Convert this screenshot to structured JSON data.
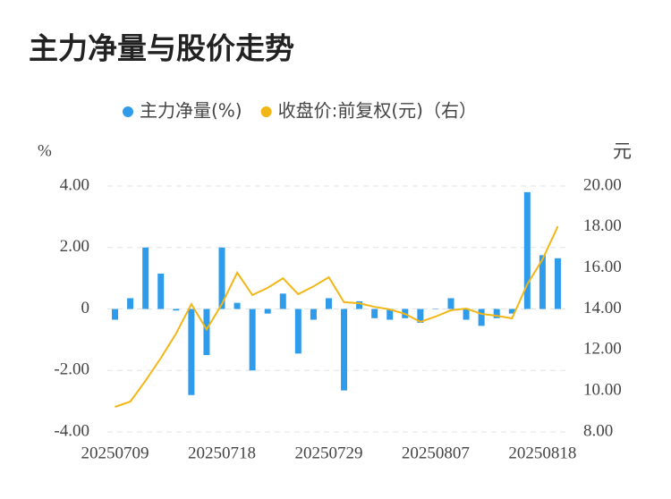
{
  "chart_data": {
    "type": "bar-line",
    "title": "主力净量与股价走势",
    "y_unit": "%",
    "y2_unit": "元",
    "categories": [
      "20250709",
      null,
      null,
      null,
      null,
      null,
      null,
      "20250718",
      null,
      null,
      null,
      null,
      null,
      null,
      "20250729",
      null,
      null,
      null,
      null,
      null,
      null,
      "20250807",
      null,
      null,
      null,
      null,
      null,
      null,
      "20250818",
      null
    ],
    "series": [
      {
        "name": "主力净量(%)",
        "type": "bar",
        "color": "#2f9ceb",
        "values": [
          -0.35,
          0.35,
          2.0,
          1.15,
          -0.05,
          -2.8,
          -1.5,
          2.0,
          0.2,
          -2.0,
          -0.15,
          0.5,
          -1.45,
          -0.35,
          0.35,
          -2.65,
          0.25,
          -0.3,
          -0.35,
          -0.3,
          -0.45,
          0.0,
          0.35,
          -0.35,
          -0.55,
          -0.3,
          -0.15,
          3.8,
          1.75,
          1.65
        ]
      },
      {
        "name": "收盘价:前复权(元)（右）",
        "type": "line",
        "axis": "y2",
        "color": "#f2b616",
        "values": [
          9.22,
          9.48,
          10.5,
          11.6,
          12.8,
          14.24,
          13.0,
          14.24,
          15.77,
          14.68,
          15.03,
          15.5,
          14.72,
          15.1,
          15.55,
          14.33,
          14.28,
          14.1,
          13.98,
          13.76,
          13.37,
          13.63,
          13.94,
          14.02,
          13.76,
          13.67,
          13.54,
          15.2,
          16.42,
          18.03
        ]
      }
    ],
    "ylim": [
      -4,
      4
    ],
    "yticks": [
      {
        "value": -4,
        "label": "-4.00"
      },
      {
        "value": -2,
        "label": "-2.00"
      },
      0,
      {
        "value": 2,
        "label": "2.00"
      },
      {
        "value": 4,
        "label": "4.00"
      }
    ],
    "y2lim": [
      8,
      20
    ],
    "y2ticks": [
      {
        "value": 8,
        "label": "8.00"
      },
      {
        "value": 10,
        "label": "10.00"
      },
      {
        "value": 12,
        "label": "12.00"
      },
      {
        "value": 14,
        "label": "14.00"
      },
      {
        "value": 16,
        "label": "16.00"
      },
      {
        "value": 18,
        "label": "18.00"
      },
      {
        "value": 20,
        "label": "20.00"
      }
    ],
    "grid": true,
    "legend": "top"
  }
}
